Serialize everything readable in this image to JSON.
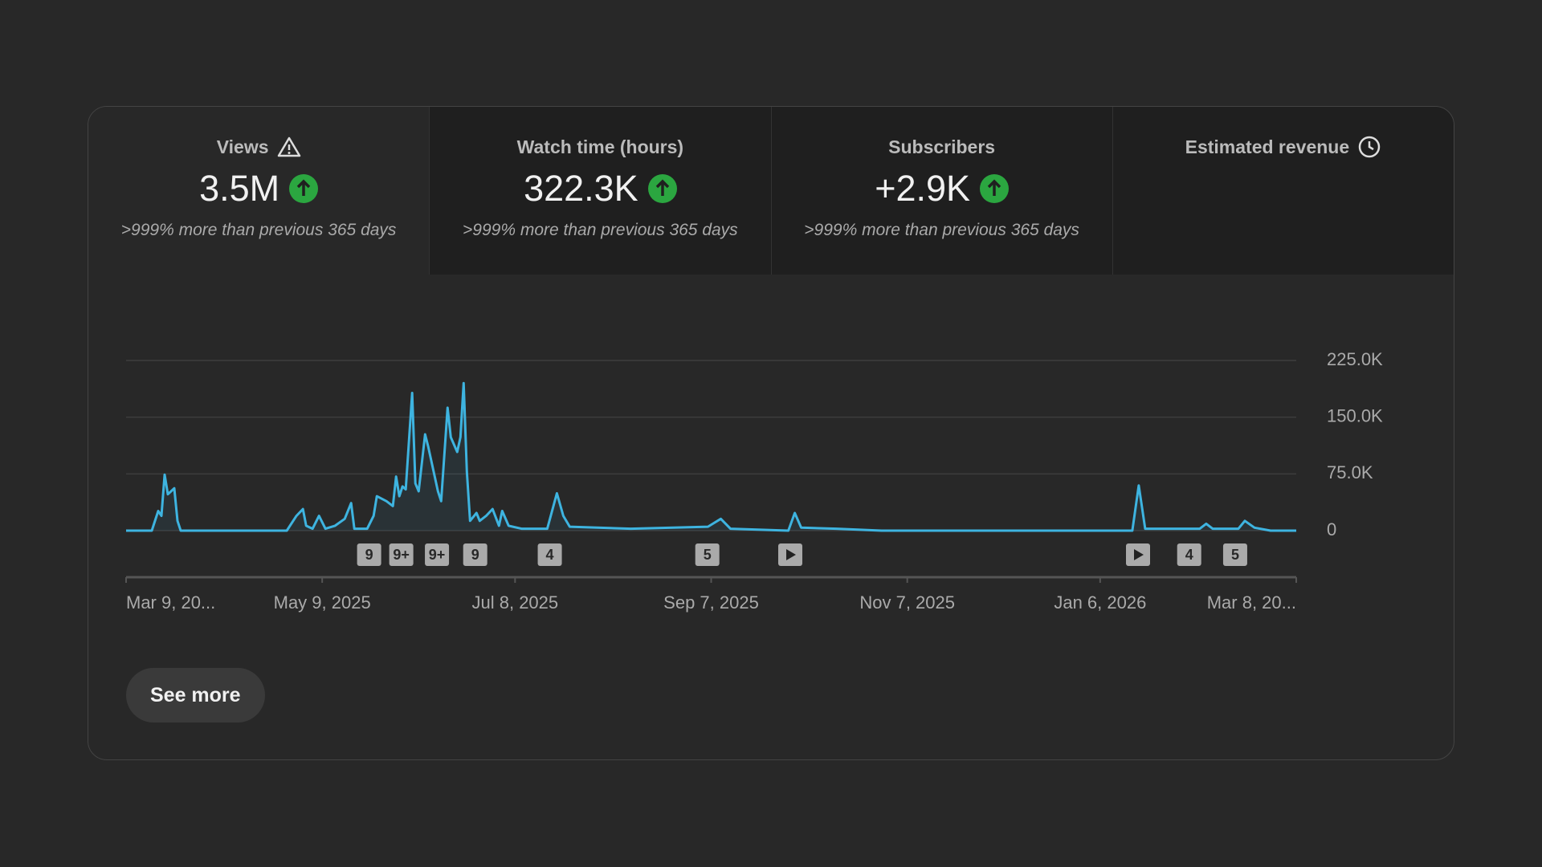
{
  "cards": [
    {
      "title": "Views",
      "value": "3.5M",
      "change": ">999% more than previous 365 days"
    },
    {
      "title": "Watch time (hours)",
      "value": "322.3K",
      "change": ">999% more than previous 365 days"
    },
    {
      "title": "Subscribers",
      "value": "+2.9K",
      "change": ">999% more than previous 365 days"
    },
    {
      "title": "Estimated revenue"
    }
  ],
  "chart_data": {
    "type": "line",
    "color": "#3eb4e0",
    "grid": true,
    "x": [
      0,
      8,
      10,
      11,
      12,
      13,
      14,
      15,
      16,
      17,
      50,
      53,
      55,
      56,
      58,
      60,
      62,
      65,
      68,
      70,
      71,
      75,
      77,
      78,
      81,
      83,
      84,
      85,
      86,
      87,
      89,
      90,
      91,
      93,
      94,
      95,
      97,
      98,
      100,
      101,
      103,
      104,
      105,
      106,
      107,
      109,
      110,
      112,
      114,
      116,
      117,
      119,
      123,
      131,
      134,
      136,
      138,
      157,
      181,
      185,
      188,
      206,
      208,
      210,
      221,
      235,
      313,
      315,
      317,
      326,
      334,
      336,
      338,
      346,
      348,
      351,
      356,
      364
    ],
    "values": [
      0,
      0,
      26000,
      19500,
      74100,
      48100,
      52000,
      56000,
      13000,
      0,
      0,
      19500,
      28600,
      6500,
      2600,
      19500,
      2600,
      6500,
      15600,
      36400,
      2600,
      2600,
      19500,
      45500,
      39000,
      32500,
      71500,
      45500,
      58500,
      54600,
      182000,
      62400,
      52000,
      127400,
      110500,
      91000,
      52000,
      39000,
      162500,
      123500,
      104000,
      123500,
      195000,
      78000,
      13000,
      23400,
      13000,
      19500,
      28600,
      6500,
      26000,
      6500,
      2600,
      2600,
      49400,
      19500,
      5200,
      2600,
      5200,
      15600,
      2600,
      0,
      23400,
      3900,
      2600,
      0,
      0,
      59800,
      2600,
      2600,
      2600,
      9100,
      2600,
      2600,
      13000,
      3900,
      0,
      0
    ],
    "xlim": [
      0,
      364
    ],
    "xticks": [
      {
        "value": 0,
        "label": "Mar 9, 20..."
      },
      {
        "value": 61,
        "label": "May 9, 2025"
      },
      {
        "value": 121,
        "label": "Jul 8, 2025"
      },
      {
        "value": 182,
        "label": "Sep 7, 2025"
      },
      {
        "value": 243,
        "label": "Nov 7, 2025"
      },
      {
        "value": 303,
        "label": "Jan 6, 2026"
      },
      {
        "value": 364,
        "label": "Mar 8, 20..."
      }
    ],
    "ylim": [
      0,
      225000
    ],
    "yticks": [
      0,
      {
        "value": 75000,
        "label": "75.0K"
      },
      {
        "value": 150000,
        "label": "150.0K"
      },
      {
        "value": 225000,
        "label": "225.0K"
      }
    ],
    "annotations": [
      {
        "x": 75.6,
        "label": "9"
      },
      {
        "x": 85.6,
        "label": "9+"
      },
      {
        "x": 96.7,
        "label": "9+"
      },
      {
        "x": 108.6,
        "label": "9"
      },
      {
        "x": 131.8,
        "label": "4"
      },
      {
        "x": 180.8,
        "label": "5"
      },
      {
        "x": 330.7,
        "label": "4"
      },
      {
        "x": 345,
        "label": "5"
      }
    ]
  },
  "button": "See more"
}
